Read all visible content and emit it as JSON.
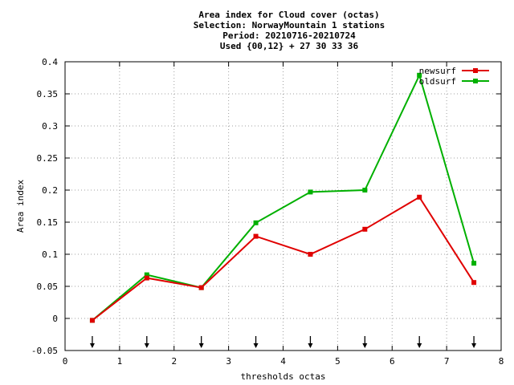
{
  "chart_data": {
    "type": "line",
    "title_lines": [
      "Area index  for Cloud cover (octas)",
      "Selection: NorwayMountain      1 stations",
      "Period: 20210716-20210724",
      "Used {00,12} + 27 30 33 36"
    ],
    "xlabel": "thresholds octas",
    "ylabel": "Area index",
    "xlim": [
      0,
      8
    ],
    "ylim": [
      -0.05,
      0.4
    ],
    "xticks": [
      "0",
      "1",
      "2",
      "3",
      "4",
      "5",
      "6",
      "7",
      "8"
    ],
    "yticks": [
      "-0.05",
      "0",
      "0.05",
      "0.1",
      "0.15",
      "0.2",
      "0.25",
      "0.3",
      "0.35",
      "0.4"
    ],
    "grid": true,
    "legend_position": "top-right",
    "x": [
      0.5,
      1.5,
      2.5,
      3.5,
      4.5,
      5.5,
      6.5,
      7.5
    ],
    "arrow_markers_x": [
      0.5,
      1.5,
      2.5,
      3.5,
      4.5,
      5.5,
      6.5,
      7.5
    ],
    "series": [
      {
        "name": "newsurf",
        "color": "#e00000",
        "values": [
          -0.003,
          0.063,
          0.048,
          0.128,
          0.1,
          0.139,
          0.189,
          0.056
        ]
      },
      {
        "name": "oldsurf",
        "color": "#00b000",
        "values": [
          -0.003,
          0.068,
          0.048,
          0.149,
          0.197,
          0.2,
          0.379,
          0.086
        ]
      }
    ]
  }
}
